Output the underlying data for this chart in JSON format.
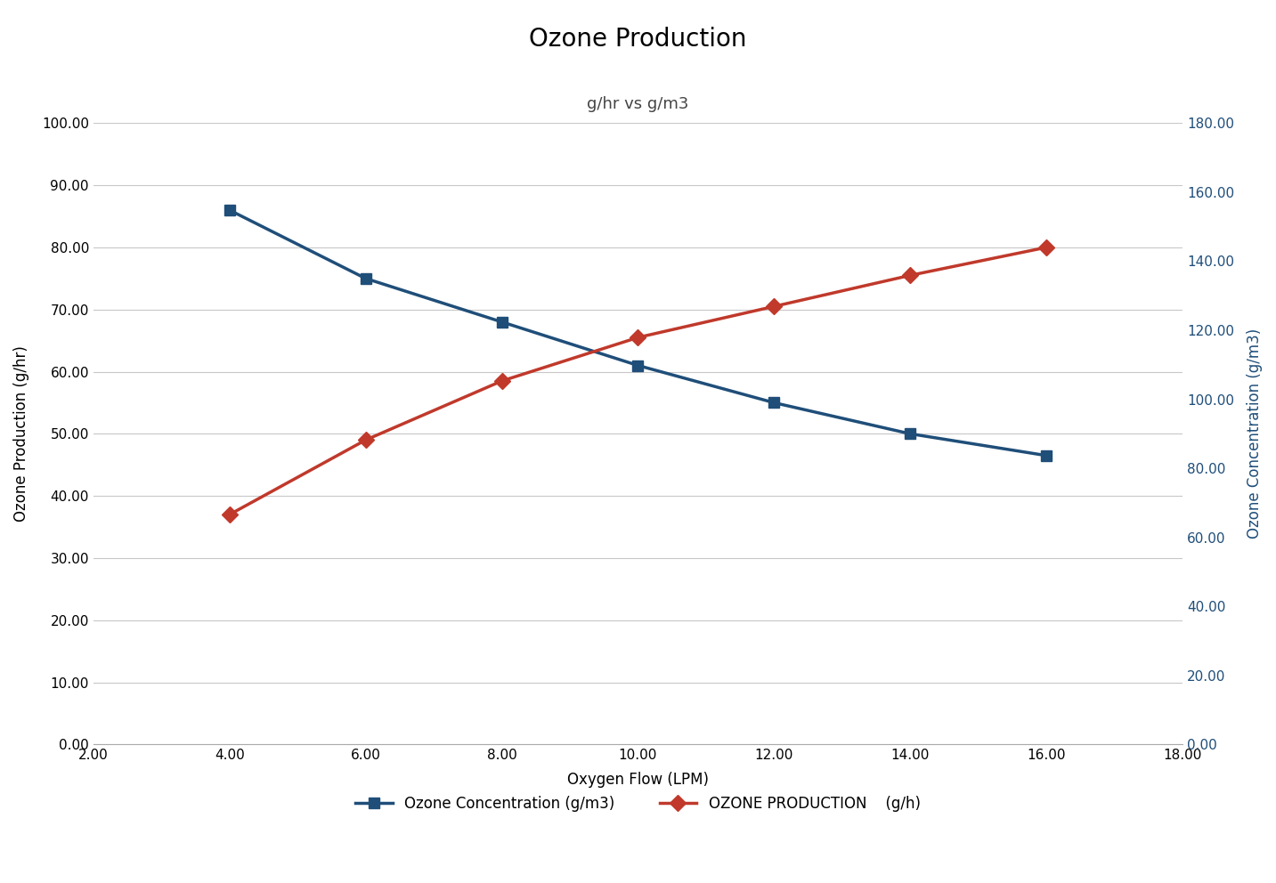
{
  "title": "Ozone Production",
  "subtitle": "g/hr vs g/m3",
  "xlabel": "Oxygen Flow (LPM)",
  "ylabel_left": "Ozone Production (g/hr)",
  "ylabel_right": "Ozone Concentration (g/m3)",
  "x": [
    4,
    6,
    8,
    10,
    12,
    14,
    16
  ],
  "conc_y": [
    86,
    75,
    68,
    61,
    55,
    50,
    46.5
  ],
  "conc_color": "#1f4e79",
  "conc_label": "Ozone Concentration (g/m3)",
  "conc_marker": "s",
  "prod_y": [
    37,
    49,
    58.5,
    65.5,
    70.5,
    75.5,
    80
  ],
  "prod_color": "#c0392b",
  "prod_label": "OZONE PRODUCTION    (g/h)",
  "prod_marker": "D",
  "xlim": [
    2,
    18
  ],
  "xticks": [
    2,
    4,
    6,
    8,
    10,
    12,
    14,
    16,
    18
  ],
  "ylim_left": [
    0,
    100
  ],
  "yticks_left": [
    0,
    10,
    20,
    30,
    40,
    50,
    60,
    70,
    80,
    90,
    100
  ],
  "ylim_right": [
    0,
    180
  ],
  "yticks_right": [
    0,
    20,
    40,
    60,
    80,
    100,
    120,
    140,
    160,
    180
  ],
  "right_axis_color": "#1f4e79",
  "background_color": "#ffffff",
  "grid_color": "#c8c8c8",
  "title_fontsize": 20,
  "subtitle_fontsize": 13,
  "axis_label_fontsize": 12,
  "tick_fontsize": 11,
  "legend_fontsize": 12,
  "line_width": 2.5,
  "marker_size": 9
}
